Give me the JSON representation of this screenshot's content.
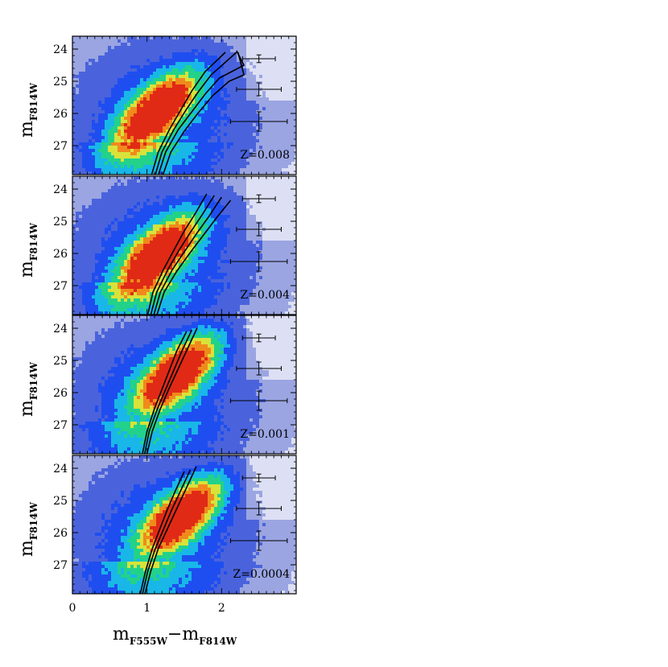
{
  "chart_data": {
    "type": "scatter",
    "subtype": "color-magnitude diagram (Hess density) with isochrone overlays",
    "xlabel": "m_F555W − m_F814W",
    "xlabel_main": "m",
    "xlabel_sub1": "F555W",
    "xlabel_mid": "−m",
    "xlabel_sub2": "F814W",
    "ylabel_main": "m",
    "ylabel_sub": "F814W",
    "xlim": [
      0,
      3
    ],
    "ylim": [
      27.9,
      23.6
    ],
    "x_ticks": [
      0,
      1,
      2
    ],
    "x_tick_labels": [
      "0",
      "1",
      "2"
    ],
    "y_ticks": [
      24,
      25,
      26,
      27
    ],
    "y_tick_labels": [
      "24",
      "25",
      "26",
      "27"
    ],
    "density_colors": [
      "#ffffff",
      "#dde0f4",
      "#9aa5e2",
      "#4a63dc",
      "#1f4ef0",
      "#18b7e8",
      "#22d28a",
      "#d8e23a",
      "#f08a1c",
      "#e02a16"
    ],
    "isochrone_color": "#000000",
    "error_bars": [
      {
        "mag": 24.3,
        "color_center": 2.5,
        "color_err": 0.22,
        "mag_err": 0.12
      },
      {
        "mag": 25.25,
        "color_center": 2.5,
        "color_err": 0.3,
        "mag_err": 0.2
      },
      {
        "mag": 26.25,
        "color_center": 2.5,
        "color_err": 0.38,
        "mag_err": 0.3
      }
    ],
    "panels": [
      {
        "label": "Z=0.008",
        "density_peak": {
          "color": 1.1,
          "mag": 25.9
        },
        "isochrones": [
          [
            [
              1.05,
              28.0
            ],
            [
              1.15,
              27.2
            ],
            [
              1.3,
              26.5
            ],
            [
              1.45,
              25.9
            ],
            [
              1.6,
              25.3
            ],
            [
              1.78,
              24.7
            ],
            [
              2.05,
              24.1
            ]
          ],
          [
            [
              1.1,
              28.0
            ],
            [
              1.2,
              27.2
            ],
            [
              1.36,
              26.5
            ],
            [
              1.52,
              25.9
            ],
            [
              1.68,
              25.35
            ],
            [
              1.86,
              24.8
            ],
            [
              2.2,
              24.1
            ]
          ],
          [
            [
              1.14,
              28.0
            ],
            [
              1.25,
              27.2
            ],
            [
              1.42,
              26.5
            ],
            [
              1.6,
              25.95
            ],
            [
              1.78,
              25.4
            ],
            [
              1.97,
              24.9
            ],
            [
              2.3,
              24.5
            ],
            [
              2.2,
              24.05
            ]
          ],
          [
            [
              1.2,
              28.0
            ],
            [
              1.32,
              27.2
            ],
            [
              1.5,
              26.55
            ],
            [
              1.68,
              26.0
            ],
            [
              1.88,
              25.45
            ],
            [
              2.1,
              25.0
            ],
            [
              2.3,
              24.8
            ],
            [
              2.22,
              24.1
            ]
          ]
        ]
      },
      {
        "label": "Z=0.004",
        "density_peak": {
          "color": 1.12,
          "mag": 26.0
        },
        "isochrones": [
          [
            [
              1.0,
              28.0
            ],
            [
              1.08,
              27.2
            ],
            [
              1.22,
              26.5
            ],
            [
              1.36,
              25.9
            ],
            [
              1.5,
              25.3
            ],
            [
              1.65,
              24.75
            ],
            [
              1.8,
              24.15
            ]
          ],
          [
            [
              1.04,
              28.0
            ],
            [
              1.13,
              27.2
            ],
            [
              1.28,
              26.5
            ],
            [
              1.43,
              25.9
            ],
            [
              1.58,
              25.35
            ],
            [
              1.74,
              24.8
            ],
            [
              1.9,
              24.2
            ]
          ],
          [
            [
              1.08,
              28.0
            ],
            [
              1.18,
              27.2
            ],
            [
              1.34,
              26.5
            ],
            [
              1.5,
              25.95
            ],
            [
              1.66,
              25.4
            ],
            [
              1.83,
              24.85
            ],
            [
              2.0,
              24.25
            ]
          ],
          [
            [
              1.12,
              28.0
            ],
            [
              1.23,
              27.2
            ],
            [
              1.4,
              26.55
            ],
            [
              1.57,
              26.0
            ],
            [
              1.75,
              25.45
            ],
            [
              1.93,
              24.9
            ],
            [
              2.12,
              24.35
            ]
          ]
        ]
      },
      {
        "label": "Z=0.001",
        "density_peak": {
          "color": 1.4,
          "mag": 25.3
        },
        "isochrones": [
          [
            [
              0.93,
              28.0
            ],
            [
              1.0,
              27.2
            ],
            [
              1.1,
              26.5
            ],
            [
              1.2,
              25.9
            ],
            [
              1.3,
              25.3
            ],
            [
              1.4,
              24.7
            ],
            [
              1.53,
              24.1
            ]
          ],
          [
            [
              0.96,
              28.0
            ],
            [
              1.03,
              27.2
            ],
            [
              1.14,
              26.5
            ],
            [
              1.25,
              25.9
            ],
            [
              1.36,
              25.3
            ],
            [
              1.47,
              24.7
            ],
            [
              1.6,
              24.05
            ]
          ],
          [
            [
              0.99,
              28.0
            ],
            [
              1.07,
              27.2
            ],
            [
              1.18,
              26.5
            ],
            [
              1.29,
              25.9
            ],
            [
              1.41,
              25.3
            ],
            [
              1.53,
              24.7
            ],
            [
              1.67,
              24.0
            ]
          ]
        ]
      },
      {
        "label": "Z=0.0004",
        "density_peak": {
          "color": 1.45,
          "mag": 25.4
        },
        "isochrones": [
          [
            [
              0.9,
              28.0
            ],
            [
              0.98,
              27.2
            ],
            [
              1.07,
              26.5
            ],
            [
              1.17,
              25.9
            ],
            [
              1.27,
              25.3
            ],
            [
              1.38,
              24.7
            ],
            [
              1.5,
              24.1
            ]
          ],
          [
            [
              0.93,
              28.0
            ],
            [
              1.01,
              27.2
            ],
            [
              1.11,
              26.5
            ],
            [
              1.22,
              25.9
            ],
            [
              1.33,
              25.3
            ],
            [
              1.45,
              24.7
            ],
            [
              1.58,
              24.05
            ]
          ],
          [
            [
              0.96,
              28.0
            ],
            [
              1.05,
              27.2
            ],
            [
              1.15,
              26.5
            ],
            [
              1.27,
              25.9
            ],
            [
              1.39,
              25.3
            ],
            [
              1.52,
              24.65
            ],
            [
              1.66,
              23.95
            ]
          ]
        ]
      }
    ]
  }
}
